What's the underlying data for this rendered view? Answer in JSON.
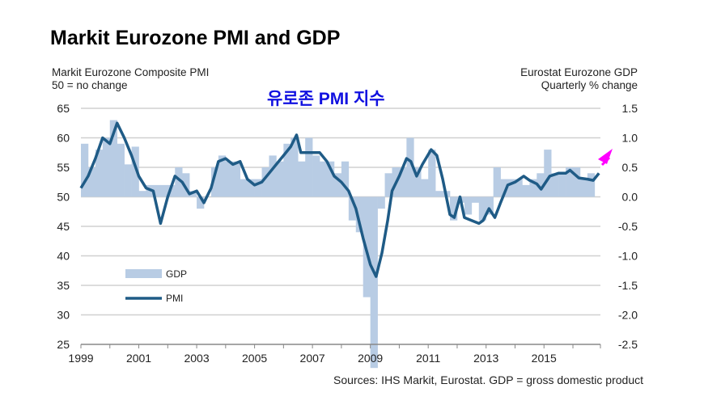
{
  "title": "Markit Eurozone PMI and GDP",
  "left_subtitle": [
    "Markit Eurozone Composite PMI",
    "50 = no change"
  ],
  "right_subtitle": [
    "Eurostat Eurozone GDP",
    "Quarterly % change"
  ],
  "annotation": "유로존 PMI 지수",
  "source": "Sources: IHS Markit, Eurostat. GDP = gross domestic product",
  "colors": {
    "gdp": "#b8cce4",
    "pmi": "#1f5b86",
    "arrow": "#ff00ff",
    "grid": "#d0d0d0"
  },
  "chart_data": {
    "type": "bar+line",
    "title": "Markit Eurozone PMI and GDP",
    "x_ticks": [
      "1999",
      "2001",
      "2003",
      "2005",
      "2007",
      "2009",
      "2011",
      "2013",
      "2015"
    ],
    "y_left": {
      "label": "Markit Eurozone Composite PMI",
      "range": [
        25,
        65
      ],
      "ticks": [
        "65",
        "60",
        "55",
        "50",
        "45",
        "40",
        "35",
        "30",
        "25"
      ]
    },
    "y_right": {
      "label": "Eurostat Eurozone GDP",
      "range": [
        -2.5,
        1.5
      ],
      "ticks": [
        "1.5",
        "1.0",
        "0.5",
        "0.0",
        "-0.5",
        "-1.0",
        "-1.5",
        "-2.0",
        "-2.5"
      ]
    },
    "legend": {
      "placement": "bottom-left",
      "entries": [
        "GDP",
        "PMI"
      ]
    },
    "gdp": {
      "start": 1999,
      "step": 0.25,
      "values": [
        0.9,
        0.5,
        0.8,
        1.0,
        1.3,
        0.9,
        0.55,
        0.85,
        0.1,
        0.2,
        0.2,
        0.2,
        0.2,
        0.5,
        0.4,
        0.1,
        -0.2,
        0.0,
        0.5,
        0.7,
        0.6,
        0.6,
        0.3,
        0.3,
        0.3,
        0.5,
        0.7,
        0.6,
        0.9,
        1.0,
        0.6,
        1.0,
        0.7,
        0.6,
        0.6,
        0.4,
        0.6,
        -0.4,
        -0.6,
        -1.7,
        -2.9,
        -0.2,
        0.4,
        0.5,
        0.5,
        1.0,
        0.5,
        0.3,
        0.8,
        0.1,
        0.1,
        -0.4,
        -0.1,
        -0.3,
        -0.1,
        -0.4,
        -0.3,
        0.5,
        0.3,
        0.3,
        0.3,
        0.2,
        0.3,
        0.4,
        0.8,
        0.4,
        0.4,
        0.5,
        0.5,
        0.3,
        0.4
      ]
    },
    "pmi": {
      "x": [
        1999.0,
        1999.25,
        1999.5,
        1999.75,
        2000.0,
        2000.25,
        2000.5,
        2000.75,
        2001.0,
        2001.25,
        2001.5,
        2001.75,
        2002.0,
        2002.25,
        2002.5,
        2002.75,
        2003.0,
        2003.25,
        2003.5,
        2003.75,
        2004.0,
        2004.25,
        2004.5,
        2004.75,
        2005.0,
        2005.25,
        2005.5,
        2005.75,
        2006.0,
        2006.25,
        2006.45,
        2006.6,
        2006.75,
        2007.0,
        2007.25,
        2007.5,
        2007.75,
        2008.0,
        2008.25,
        2008.5,
        2008.75,
        2009.0,
        2009.2,
        2009.4,
        2009.6,
        2009.75,
        2010.0,
        2010.25,
        2010.4,
        2010.6,
        2010.8,
        2011.1,
        2011.3,
        2011.5,
        2011.75,
        2011.9,
        2012.1,
        2012.25,
        2012.5,
        2012.75,
        2012.9,
        2013.1,
        2013.3,
        2013.5,
        2013.75,
        2014.0,
        2014.3,
        2014.5,
        2014.75,
        2014.9,
        2015.2,
        2015.5,
        2015.75,
        2015.9,
        2016.2,
        2016.5,
        2016.7,
        2016.9
      ],
      "y": [
        51.5,
        53.5,
        56.5,
        60,
        59,
        62.5,
        60,
        57,
        53.5,
        51.5,
        51,
        45.5,
        50,
        53.5,
        52.5,
        50.5,
        51,
        49,
        51.5,
        56,
        56.5,
        55.5,
        56,
        53,
        52,
        52.5,
        54,
        55.5,
        57,
        58.5,
        60.5,
        57.5,
        57.5,
        57.5,
        57.5,
        56,
        53.5,
        52.5,
        51,
        48,
        43,
        38.5,
        36.5,
        40.5,
        46,
        51,
        53.5,
        56.5,
        56,
        53.5,
        55.5,
        58,
        57,
        53,
        47,
        46.5,
        50,
        46.5,
        46,
        45.5,
        46,
        48,
        46.5,
        49,
        52,
        52.5,
        53.5,
        52.8,
        52.2,
        51.3,
        53.5,
        54,
        54,
        54.5,
        53.2,
        53,
        52.8,
        54
      ]
    }
  }
}
